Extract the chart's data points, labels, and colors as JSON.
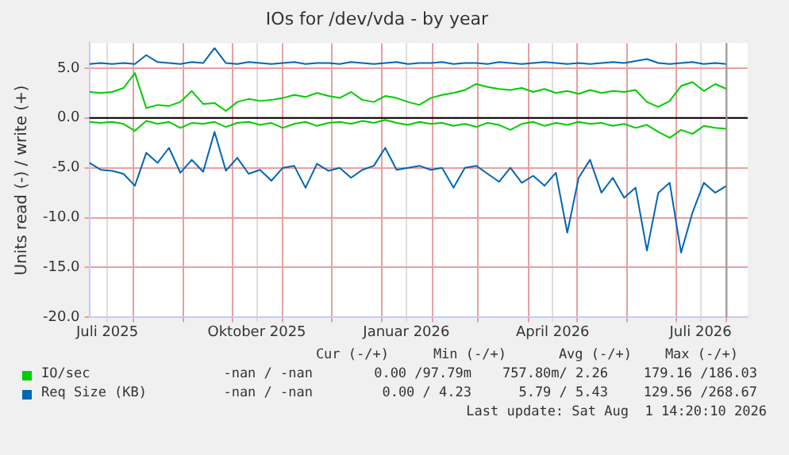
{
  "chart_data": {
    "type": "line",
    "title": "IOs for /dev/vda - by year",
    "ylabel": "Units read (-) / write (+)",
    "x": [
      "2025-07-05",
      "2025-07-12",
      "2025-07-19",
      "2025-07-26",
      "2025-08-02",
      "2025-08-09",
      "2025-08-16",
      "2025-08-23",
      "2025-08-30",
      "2025-09-06",
      "2025-09-13",
      "2025-09-20",
      "2025-09-27",
      "2025-10-04",
      "2025-10-11",
      "2025-10-18",
      "2025-10-25",
      "2025-11-01",
      "2025-11-08",
      "2025-11-15",
      "2025-11-22",
      "2025-11-29",
      "2025-12-06",
      "2025-12-13",
      "2025-12-20",
      "2025-12-27",
      "2026-01-03",
      "2026-01-10",
      "2026-01-17",
      "2026-01-24",
      "2026-01-31",
      "2026-02-07",
      "2026-02-14",
      "2026-02-21",
      "2026-02-28",
      "2026-03-07",
      "2026-03-14",
      "2026-03-21",
      "2026-03-28",
      "2026-04-04",
      "2026-04-11",
      "2026-04-18",
      "2026-04-25",
      "2026-05-02",
      "2026-05-09",
      "2026-05-16",
      "2026-05-23",
      "2026-05-30",
      "2026-06-06",
      "2026-06-13",
      "2026-06-20",
      "2026-06-27",
      "2026-07-04",
      "2026-07-11",
      "2026-07-18",
      "2026-07-25",
      "2026-08-01"
    ],
    "series": [
      {
        "color": "#00cc00",
        "values": [
          -0.4,
          -0.5,
          -0.4,
          -0.6,
          -1.3,
          -0.3,
          -0.6,
          -0.4,
          -1.0,
          -0.5,
          -0.6,
          -0.4,
          -0.9,
          -0.5,
          -0.4,
          -0.7,
          -0.5,
          -1.0,
          -0.6,
          -0.4,
          -0.8,
          -0.5,
          -0.4,
          -0.6,
          -0.3,
          -0.5,
          -0.2,
          -0.5,
          -0.7,
          -0.4,
          -0.6,
          -0.5,
          -0.8,
          -0.6,
          -0.9,
          -0.5,
          -0.7,
          -1.2,
          -0.6,
          -0.4,
          -0.8,
          -0.5,
          -0.7,
          -0.4,
          -0.6,
          -0.5,
          -0.8,
          -0.6,
          -1.0,
          -0.7,
          -1.4,
          -2.0,
          -1.2,
          -1.6,
          -0.8,
          -1.0,
          -1.1
        ]
      },
      {
        "name": "IO/sec",
        "color": "#00cc00",
        "values": [
          2.6,
          2.5,
          2.6,
          3.0,
          4.5,
          1.0,
          1.3,
          1.2,
          1.6,
          2.7,
          1.4,
          1.5,
          0.7,
          1.6,
          1.9,
          1.7,
          1.8,
          2.0,
          2.3,
          2.1,
          2.5,
          2.2,
          2.0,
          2.6,
          1.8,
          1.6,
          2.2,
          2.0,
          1.6,
          1.3,
          2.0,
          2.3,
          2.5,
          2.8,
          3.4,
          3.1,
          2.9,
          2.8,
          3.0,
          2.6,
          2.9,
          2.5,
          2.7,
          2.4,
          2.8,
          2.5,
          2.7,
          2.6,
          2.8,
          1.6,
          1.1,
          1.7,
          3.2,
          3.6,
          2.7,
          3.4,
          2.9
        ]
      },
      {
        "color": "#0066b3",
        "values": [
          -4.5,
          -5.2,
          -5.3,
          -5.6,
          -6.8,
          -3.5,
          -4.5,
          -3.0,
          -5.5,
          -4.2,
          -5.4,
          -1.4,
          -5.3,
          -4.0,
          -5.6,
          -5.2,
          -6.3,
          -5.0,
          -4.8,
          -7.0,
          -4.6,
          -5.3,
          -5.0,
          -6.0,
          -5.2,
          -4.8,
          -3.0,
          -5.2,
          -5.0,
          -4.8,
          -5.2,
          -5.0,
          -7.0,
          -5.0,
          -4.8,
          -5.6,
          -6.4,
          -5.0,
          -6.5,
          -5.8,
          -6.8,
          -5.5,
          -11.5,
          -6.0,
          -4.2,
          -7.5,
          -6.0,
          -8.0,
          -7.0,
          -13.3,
          -7.5,
          -6.5,
          -13.5,
          -9.5,
          -6.5,
          -7.5,
          -6.8
        ]
      },
      {
        "name": "Req Size (KB)",
        "color": "#0066b3",
        "values": [
          5.4,
          5.5,
          5.4,
          5.5,
          5.4,
          6.3,
          5.6,
          5.5,
          5.4,
          5.6,
          5.5,
          7.0,
          5.5,
          5.4,
          5.6,
          5.5,
          5.4,
          5.5,
          5.6,
          5.4,
          5.5,
          5.5,
          5.4,
          5.6,
          5.5,
          5.4,
          5.5,
          5.6,
          5.4,
          5.5,
          5.5,
          5.6,
          5.4,
          5.5,
          5.5,
          5.4,
          5.6,
          5.5,
          5.4,
          5.5,
          5.6,
          5.5,
          5.4,
          5.5,
          5.4,
          5.5,
          5.6,
          5.5,
          5.7,
          5.9,
          5.5,
          5.4,
          5.5,
          5.6,
          5.4,
          5.5,
          5.4
        ]
      }
    ],
    "xlim": [
      "2025-07-05",
      "2026-08-14"
    ],
    "xticks": [
      {
        "value": "2025-07-16",
        "label": "Juli 2025"
      },
      {
        "value": "2025-08-01",
        "label": null
      },
      {
        "value": "2025-09-01",
        "label": null
      },
      {
        "value": "2025-10-01",
        "label": null
      },
      {
        "value": "2025-10-16",
        "label": "Oktober 2025"
      },
      {
        "value": "2025-11-01",
        "label": null
      },
      {
        "value": "2025-12-01",
        "label": null
      },
      {
        "value": "2026-01-01",
        "label": null
      },
      {
        "value": "2026-01-16",
        "label": "Januar 2026"
      },
      {
        "value": "2026-02-01",
        "label": null
      },
      {
        "value": "2026-03-01",
        "label": null
      },
      {
        "value": "2026-04-01",
        "label": null
      },
      {
        "value": "2026-04-16",
        "label": "April 2026"
      },
      {
        "value": "2026-05-01",
        "label": null
      },
      {
        "value": "2026-06-01",
        "label": null
      },
      {
        "value": "2026-07-01",
        "label": null
      },
      {
        "value": "2026-07-16",
        "label": "Juli 2026"
      },
      {
        "value": "2026-08-01",
        "label": null
      }
    ],
    "ylim": [
      -20,
      7.5
    ],
    "yticks": [
      {
        "value": -20,
        "label": "-20.0"
      },
      {
        "value": -15,
        "label": "-15.0"
      },
      {
        "value": -10,
        "label": "-10.0"
      },
      {
        "value": -5,
        "label": "-5.0"
      },
      {
        "value": 0,
        "label": "0.0"
      },
      {
        "value": 5,
        "label": "5.0"
      }
    ],
    "grid": true,
    "legend": "bottom",
    "marker": "none",
    "line_style": "solid",
    "ref_lines": [
      {
        "axis": "y",
        "value": 0,
        "color": "#000000"
      },
      {
        "axis": "x",
        "value": "2026-08-01",
        "color": "#999999"
      }
    ],
    "annotations": [
      "Cur (-/+)",
      "Min (-/+)",
      "Avg (-/+)",
      "Max (-/+)",
      "-nan / -nan",
      "0.00 /97.79m",
      "757.80m/ 2.26",
      "179.16 /186.03",
      "-nan / -nan",
      "0.00 / 4.23",
      "5.79 / 5.43",
      "129.56 /268.67",
      "Last update: Sat Aug  1 14:20:10 2026"
    ]
  }
}
